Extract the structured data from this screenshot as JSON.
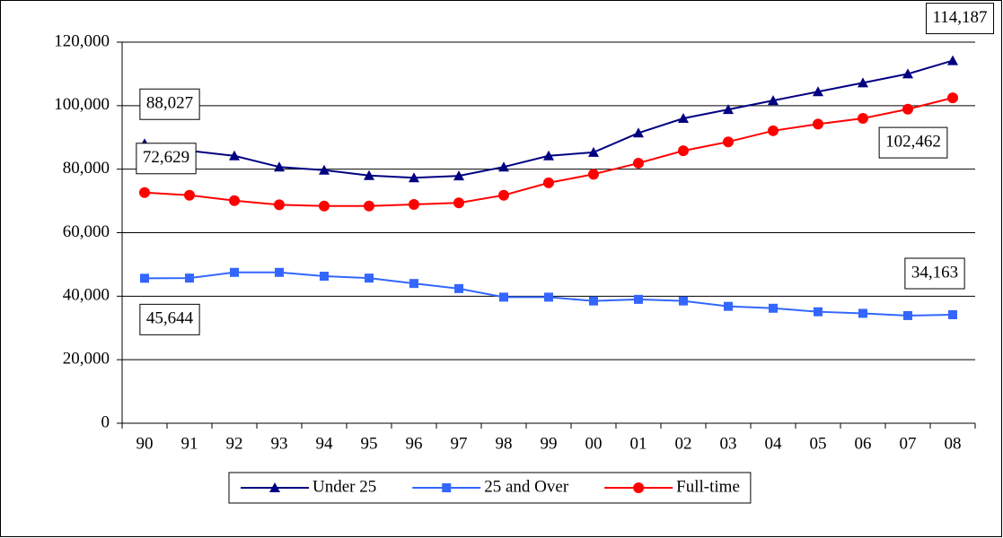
{
  "chart_data": {
    "type": "line",
    "categories": [
      "90",
      "91",
      "92",
      "93",
      "94",
      "95",
      "96",
      "97",
      "98",
      "99",
      "00",
      "01",
      "02",
      "03",
      "04",
      "05",
      "06",
      "07",
      "08"
    ],
    "ylim": [
      0,
      120000
    ],
    "yticks": [
      0,
      {
        "value": 20000,
        "label": "20,000"
      },
      {
        "value": 40000,
        "label": "40,000"
      },
      {
        "value": 60000,
        "label": "60,000"
      },
      {
        "value": 80000,
        "label": "80,000"
      },
      {
        "value": 100000,
        "label": "100,000"
      },
      {
        "value": 120000,
        "label": "120,000"
      }
    ],
    "grid": true,
    "legend": "bottom",
    "series": [
      {
        "name": "Under 25",
        "color": "#000080",
        "marker": "triangle",
        "values": [
          88027,
          85800,
          84200,
          80700,
          79700,
          78000,
          77300,
          77900,
          80700,
          84200,
          85300,
          91400,
          96000,
          98800,
          101600,
          104400,
          107200,
          110000,
          114187
        ],
        "value_labels": [
          "88,027",
          null,
          null,
          null,
          null,
          null,
          null,
          null,
          null,
          null,
          null,
          null,
          null,
          null,
          null,
          null,
          null,
          null,
          "114,187"
        ]
      },
      {
        "name": "25 and Over",
        "color": "#3366ff",
        "marker": "square",
        "values": [
          45644,
          45700,
          47500,
          47500,
          46300,
          45700,
          44000,
          42400,
          39700,
          39700,
          38500,
          39000,
          38500,
          36800,
          36200,
          35100,
          34600,
          33900,
          34163
        ],
        "value_labels": [
          "45,644",
          null,
          null,
          null,
          null,
          null,
          null,
          null,
          null,
          null,
          null,
          null,
          null,
          null,
          null,
          null,
          null,
          null,
          "34,163"
        ]
      },
      {
        "name": "Full-time",
        "color": "#ff0000",
        "marker": "circle",
        "values": [
          72629,
          71800,
          70100,
          68800,
          68400,
          68400,
          68900,
          69400,
          71800,
          75700,
          78400,
          81900,
          85800,
          88600,
          92100,
          94200,
          96000,
          98900,
          102462
        ],
        "value_labels": [
          "72,629",
          null,
          null,
          null,
          null,
          null,
          null,
          null,
          null,
          null,
          null,
          null,
          null,
          null,
          null,
          null,
          null,
          null,
          "102,462"
        ]
      }
    ]
  }
}
